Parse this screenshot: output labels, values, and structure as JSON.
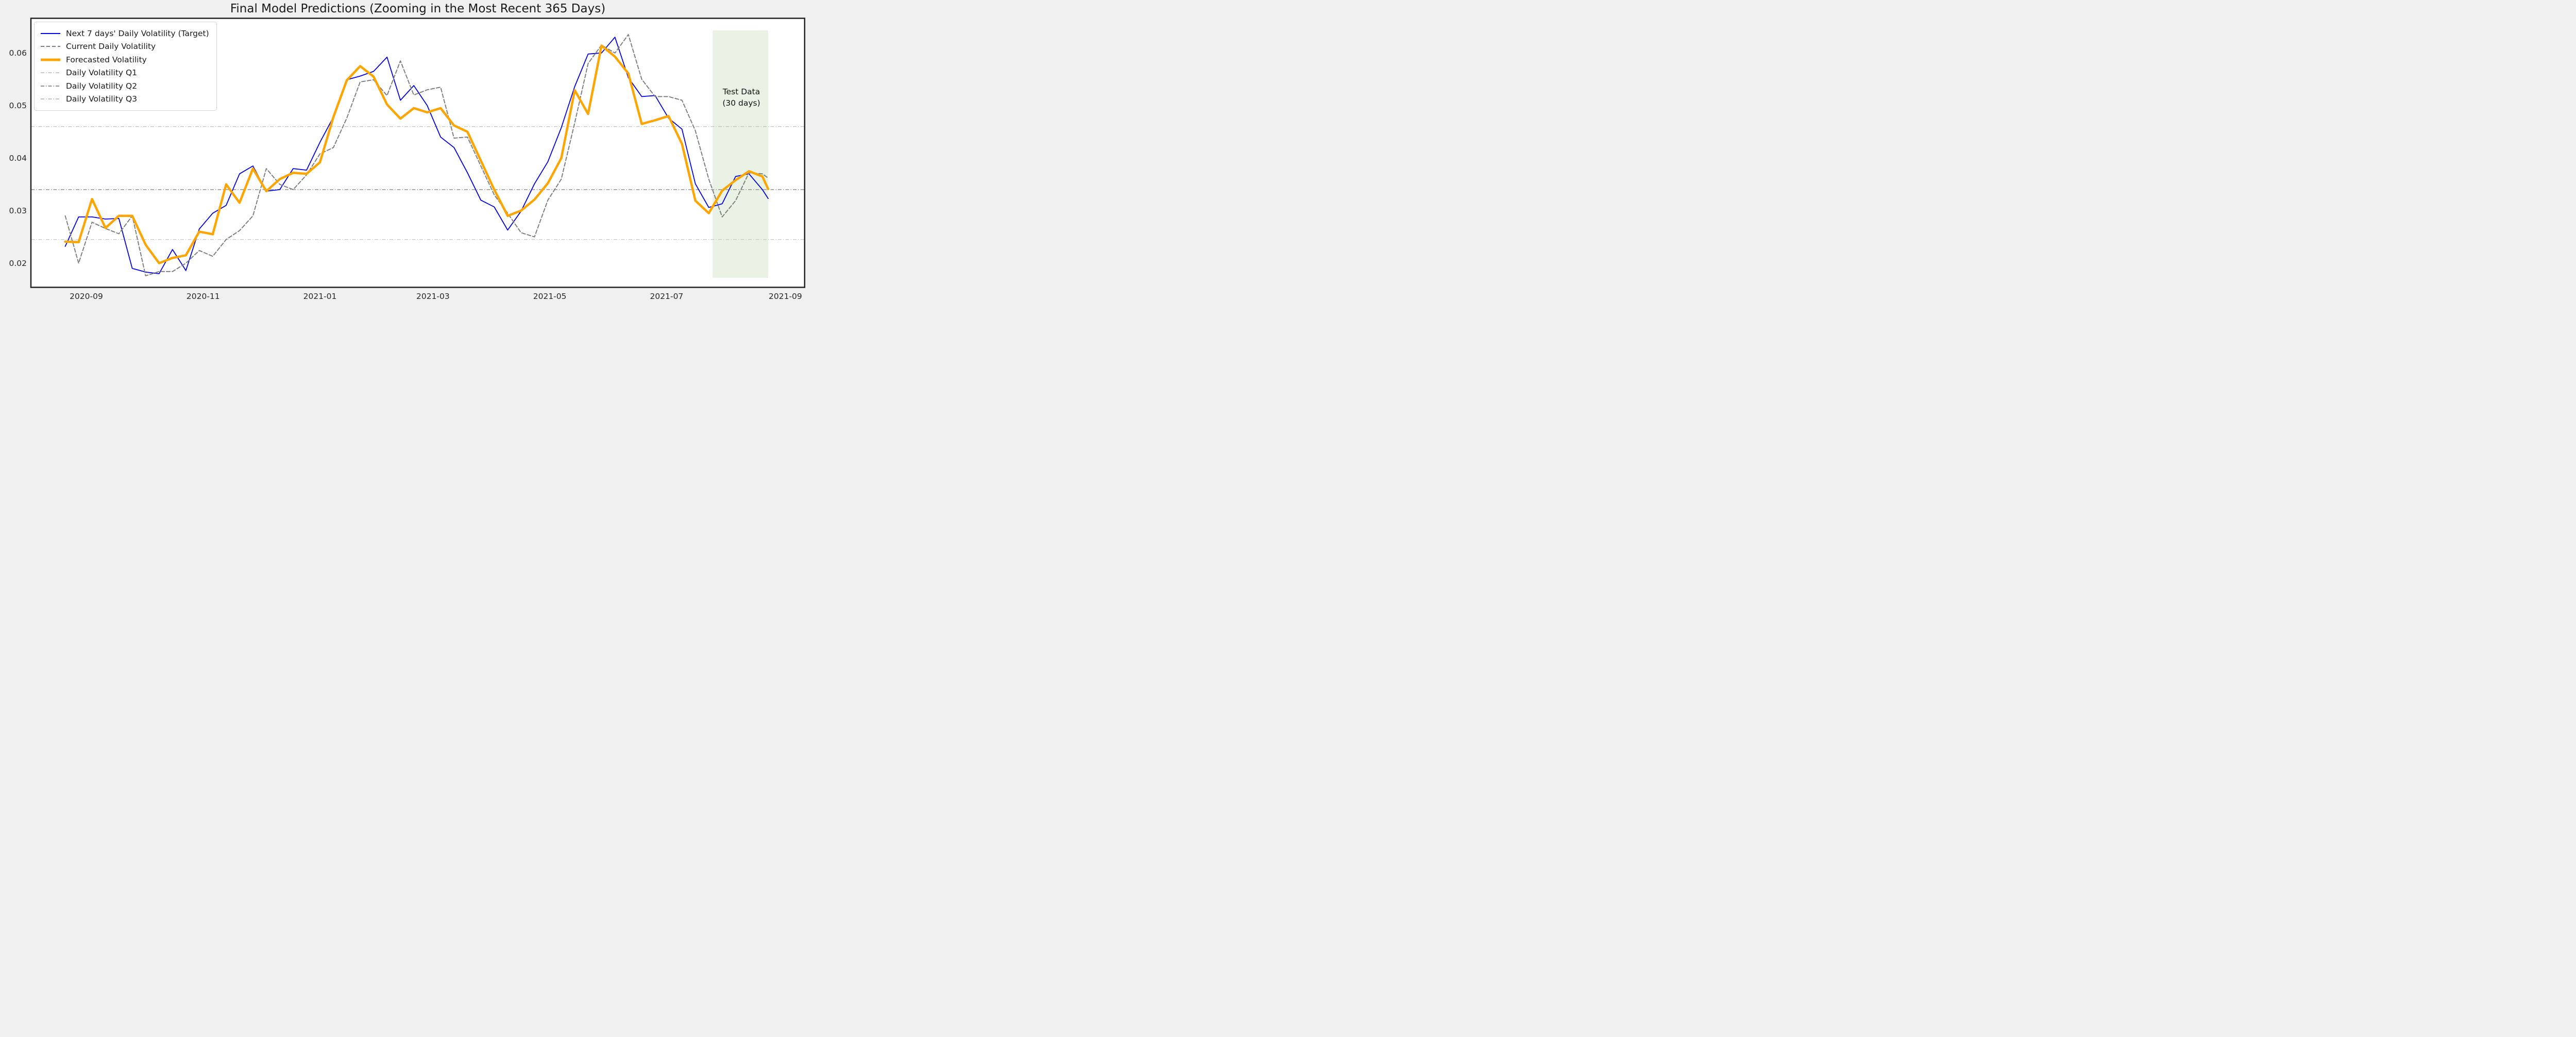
{
  "figure": {
    "title": "Final Model Predictions (Zooming in the Most Recent 365 Days)",
    "background_color": "#f0f0f0",
    "plot_background_color": "#ffffff",
    "spine_color": "#222222",
    "tick_color": "#262626"
  },
  "y_axis": {
    "tick_labels": [
      "0.06",
      "0.05",
      "0.04",
      "0.03",
      "0.02"
    ],
    "tick_values": [
      0.06,
      0.05,
      0.04,
      0.03,
      0.02
    ]
  },
  "x_axis": {
    "ticks": [
      {
        "label": "2020-09",
        "day": 11
      },
      {
        "label": "2020-11",
        "day": 72
      },
      {
        "label": "2021-01",
        "day": 133
      },
      {
        "label": "2021-03",
        "day": 192
      },
      {
        "label": "2021-05",
        "day": 253
      },
      {
        "label": "2021-07",
        "day": 314
      },
      {
        "label": "2021-09",
        "day": 376
      }
    ]
  },
  "legend": {
    "items": [
      {
        "label": "Next 7 days' Daily Volatility (Target)",
        "color": "#0000ee",
        "style": "solid",
        "stroke_width": 2
      },
      {
        "label": "Current Daily Volatility",
        "color": "#808080",
        "style": "dashed",
        "stroke_width": 2
      },
      {
        "label": "Forecasted Volatility",
        "color": "#ffa502",
        "style": "solid",
        "stroke_width": 5
      },
      {
        "label": "Daily Volatility Q1",
        "color": "#cbcbcb",
        "style": "dashdot",
        "stroke_width": 2
      },
      {
        "label": "Daily Volatility Q2",
        "color": "#949494",
        "style": "dashdot",
        "stroke_width": 2
      },
      {
        "label": "Daily Volatility Q3",
        "color": "#c3c3c3",
        "style": "dashdot",
        "stroke_width": 2
      }
    ]
  },
  "annotation": {
    "line1": "Test Data",
    "line2": "(30 days)"
  },
  "test_region": {
    "start_day": 338,
    "end_day": 367,
    "start_date": "2021-07-25",
    "end_date": "2021-08-23",
    "fill_color": "#e9f2e5",
    "y_top_value": 0.0643,
    "y_bottom_value": 0.0172
  },
  "chart_data": {
    "type": "line",
    "title": "Final Model Predictions (Zooming in the Most Recent 365 Days)",
    "xlabel": "",
    "ylabel": "",
    "ylim": [
      0.0154,
      0.0666
    ],
    "grid": false,
    "legend_position": "upper left",
    "x_start_date": "2020-08-21",
    "x_dates": [
      "2020-08-21",
      "2020-08-28",
      "2020-09-04",
      "2020-09-11",
      "2020-09-18",
      "2020-09-25",
      "2020-10-02",
      "2020-10-09",
      "2020-10-16",
      "2020-10-23",
      "2020-10-30",
      "2020-11-06",
      "2020-11-13",
      "2020-11-20",
      "2020-11-27",
      "2020-12-04",
      "2020-12-11",
      "2020-12-18",
      "2020-12-25",
      "2021-01-01",
      "2021-01-08",
      "2021-01-15",
      "2021-01-22",
      "2021-01-29",
      "2021-02-05",
      "2021-02-12",
      "2021-02-19",
      "2021-02-26",
      "2021-03-05",
      "2021-03-12",
      "2021-03-19",
      "2021-03-26",
      "2021-04-02",
      "2021-04-09",
      "2021-04-16",
      "2021-04-23",
      "2021-04-30",
      "2021-05-07",
      "2021-05-14",
      "2021-05-21",
      "2021-05-28",
      "2021-06-04",
      "2021-06-11",
      "2021-06-18",
      "2021-06-25",
      "2021-07-02",
      "2021-07-09",
      "2021-07-16",
      "2021-07-23",
      "2021-07-30",
      "2021-08-06",
      "2021-08-13",
      "2021-08-20",
      "2021-08-23"
    ],
    "x_day_offsets": [
      0,
      7,
      14,
      21,
      28,
      35,
      42,
      49,
      56,
      63,
      70,
      77,
      84,
      91,
      98,
      105,
      112,
      119,
      126,
      133,
      140,
      147,
      154,
      161,
      168,
      175,
      182,
      189,
      196,
      203,
      210,
      217,
      224,
      231,
      238,
      245,
      252,
      259,
      266,
      273,
      280,
      287,
      294,
      301,
      308,
      315,
      322,
      329,
      336,
      343,
      350,
      357,
      364,
      367
    ],
    "series": [
      {
        "name": "Next 7 days' Daily Volatility (Target)",
        "color": "#0000ee",
        "style": "solid",
        "stroke_width": 1.8,
        "values": [
          0.0232,
          0.0288,
          0.0288,
          0.0284,
          0.0285,
          0.019,
          0.0183,
          0.018,
          0.0226,
          0.0186,
          0.0265,
          0.0295,
          0.031,
          0.037,
          0.0385,
          0.0337,
          0.034,
          0.038,
          0.0377,
          0.043,
          0.0478,
          0.0549,
          0.0556,
          0.0565,
          0.0592,
          0.051,
          0.0538,
          0.05,
          0.044,
          0.042,
          0.0372,
          0.032,
          0.0307,
          0.0263,
          0.0299,
          0.0351,
          0.0393,
          0.0458,
          0.0536,
          0.0598,
          0.06,
          0.063,
          0.0553,
          0.0517,
          0.0519,
          0.0476,
          0.0455,
          0.0351,
          0.0306,
          0.0313,
          0.0365,
          0.037,
          0.034,
          0.0323
        ]
      },
      {
        "name": "Current Daily Volatility",
        "color": "#808080",
        "style": "dashed",
        "stroke_width": 2,
        "values": [
          0.029,
          0.02,
          0.0278,
          0.0266,
          0.0256,
          0.029,
          0.0176,
          0.0184,
          0.0184,
          0.02,
          0.0224,
          0.0213,
          0.0245,
          0.0262,
          0.029,
          0.038,
          0.035,
          0.034,
          0.0368,
          0.0408,
          0.042,
          0.0476,
          0.0545,
          0.0549,
          0.0519,
          0.0585,
          0.052,
          0.053,
          0.0535,
          0.0438,
          0.044,
          0.0385,
          0.033,
          0.0295,
          0.0258,
          0.025,
          0.032,
          0.036,
          0.0467,
          0.058,
          0.0615,
          0.06,
          0.0635,
          0.055,
          0.0517,
          0.0517,
          0.051,
          0.0452,
          0.036,
          0.0288,
          0.0319,
          0.0372,
          0.037,
          0.0362
        ]
      },
      {
        "name": "Forecasted Volatility",
        "color": "#ffa502",
        "style": "solid",
        "stroke_width": 4.5,
        "values": [
          0.0241,
          0.024,
          0.0322,
          0.0267,
          0.029,
          0.029,
          0.0235,
          0.02,
          0.021,
          0.0215,
          0.026,
          0.0255,
          0.035,
          0.0315,
          0.038,
          0.0337,
          0.036,
          0.0372,
          0.037,
          0.0392,
          0.0478,
          0.0548,
          0.0575,
          0.0555,
          0.0502,
          0.0475,
          0.0495,
          0.0487,
          0.0495,
          0.0462,
          0.045,
          0.0395,
          0.034,
          0.029,
          0.03,
          0.0321,
          0.0352,
          0.04,
          0.0529,
          0.0484,
          0.0614,
          0.0593,
          0.0561,
          0.0465,
          0.0472,
          0.048,
          0.0427,
          0.0319,
          0.0295,
          0.0338,
          0.0358,
          0.0375,
          0.0365,
          0.0341
        ]
      }
    ],
    "reference_lines": [
      {
        "name": "Daily Volatility Q1",
        "value": 0.0245,
        "color": "#cbcbcb",
        "style": "dashdot",
        "stroke_width": 1.4
      },
      {
        "name": "Daily Volatility Q2",
        "value": 0.034,
        "color": "#949494",
        "style": "dashdot",
        "stroke_width": 1.4
      },
      {
        "name": "Daily Volatility Q3",
        "value": 0.046,
        "color": "#c3c3c3",
        "style": "dashdot",
        "stroke_width": 1.4
      }
    ]
  }
}
